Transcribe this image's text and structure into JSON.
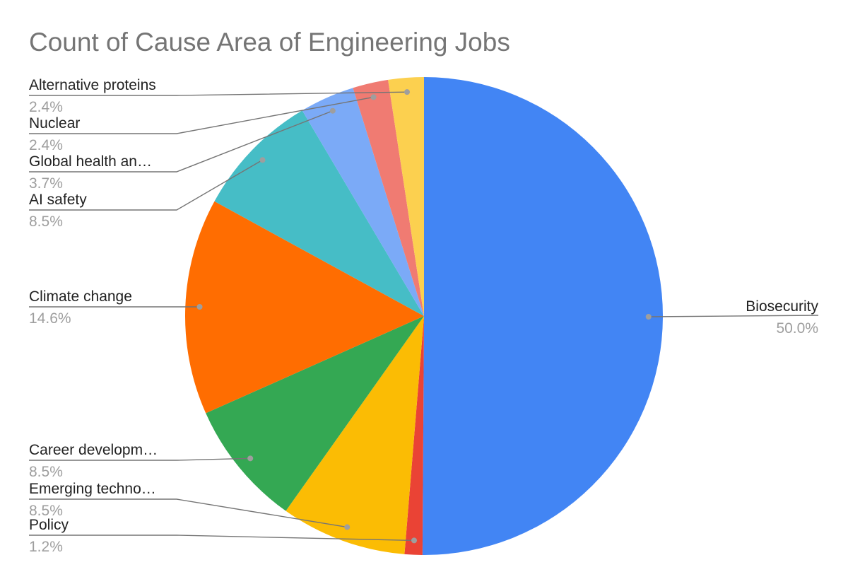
{
  "chart_data": {
    "type": "pie",
    "title": "Count of Cause Area of Engineering Jobs",
    "start": "12 o'clock, clockwise",
    "slices": [
      {
        "label": "Biosecurity",
        "display": "Biosecurity",
        "percent_label": "50.0%",
        "value": 50.0,
        "color": "#4285F4"
      },
      {
        "label": "Policy",
        "display": "Policy",
        "percent_label": "1.2%",
        "value": 1.2,
        "color": "#EA4335"
      },
      {
        "label": "Emerging technologies",
        "display": "Emerging techno…",
        "percent_label": "8.5%",
        "value": 8.5,
        "color": "#FBBC04"
      },
      {
        "label": "Career development",
        "display": "Career developm…",
        "percent_label": "8.5%",
        "value": 8.5,
        "color": "#34A853"
      },
      {
        "label": "Climate change",
        "display": "Climate change",
        "percent_label": "14.6%",
        "value": 14.6,
        "color": "#FF6D01"
      },
      {
        "label": "AI safety",
        "display": "AI safety",
        "percent_label": "8.5%",
        "value": 8.5,
        "color": "#46BDC6"
      },
      {
        "label": "Global health and development",
        "display": "Global health an…",
        "percent_label": "3.7%",
        "value": 3.7,
        "color": "#7BAAF7"
      },
      {
        "label": "Nuclear",
        "display": "Nuclear",
        "percent_label": "2.4%",
        "value": 2.4,
        "color": "#F07B72"
      },
      {
        "label": "Alternative proteins",
        "display": "Alternative proteins",
        "percent_label": "2.4%",
        "value": 2.4,
        "color": "#FCD04F"
      }
    ]
  }
}
